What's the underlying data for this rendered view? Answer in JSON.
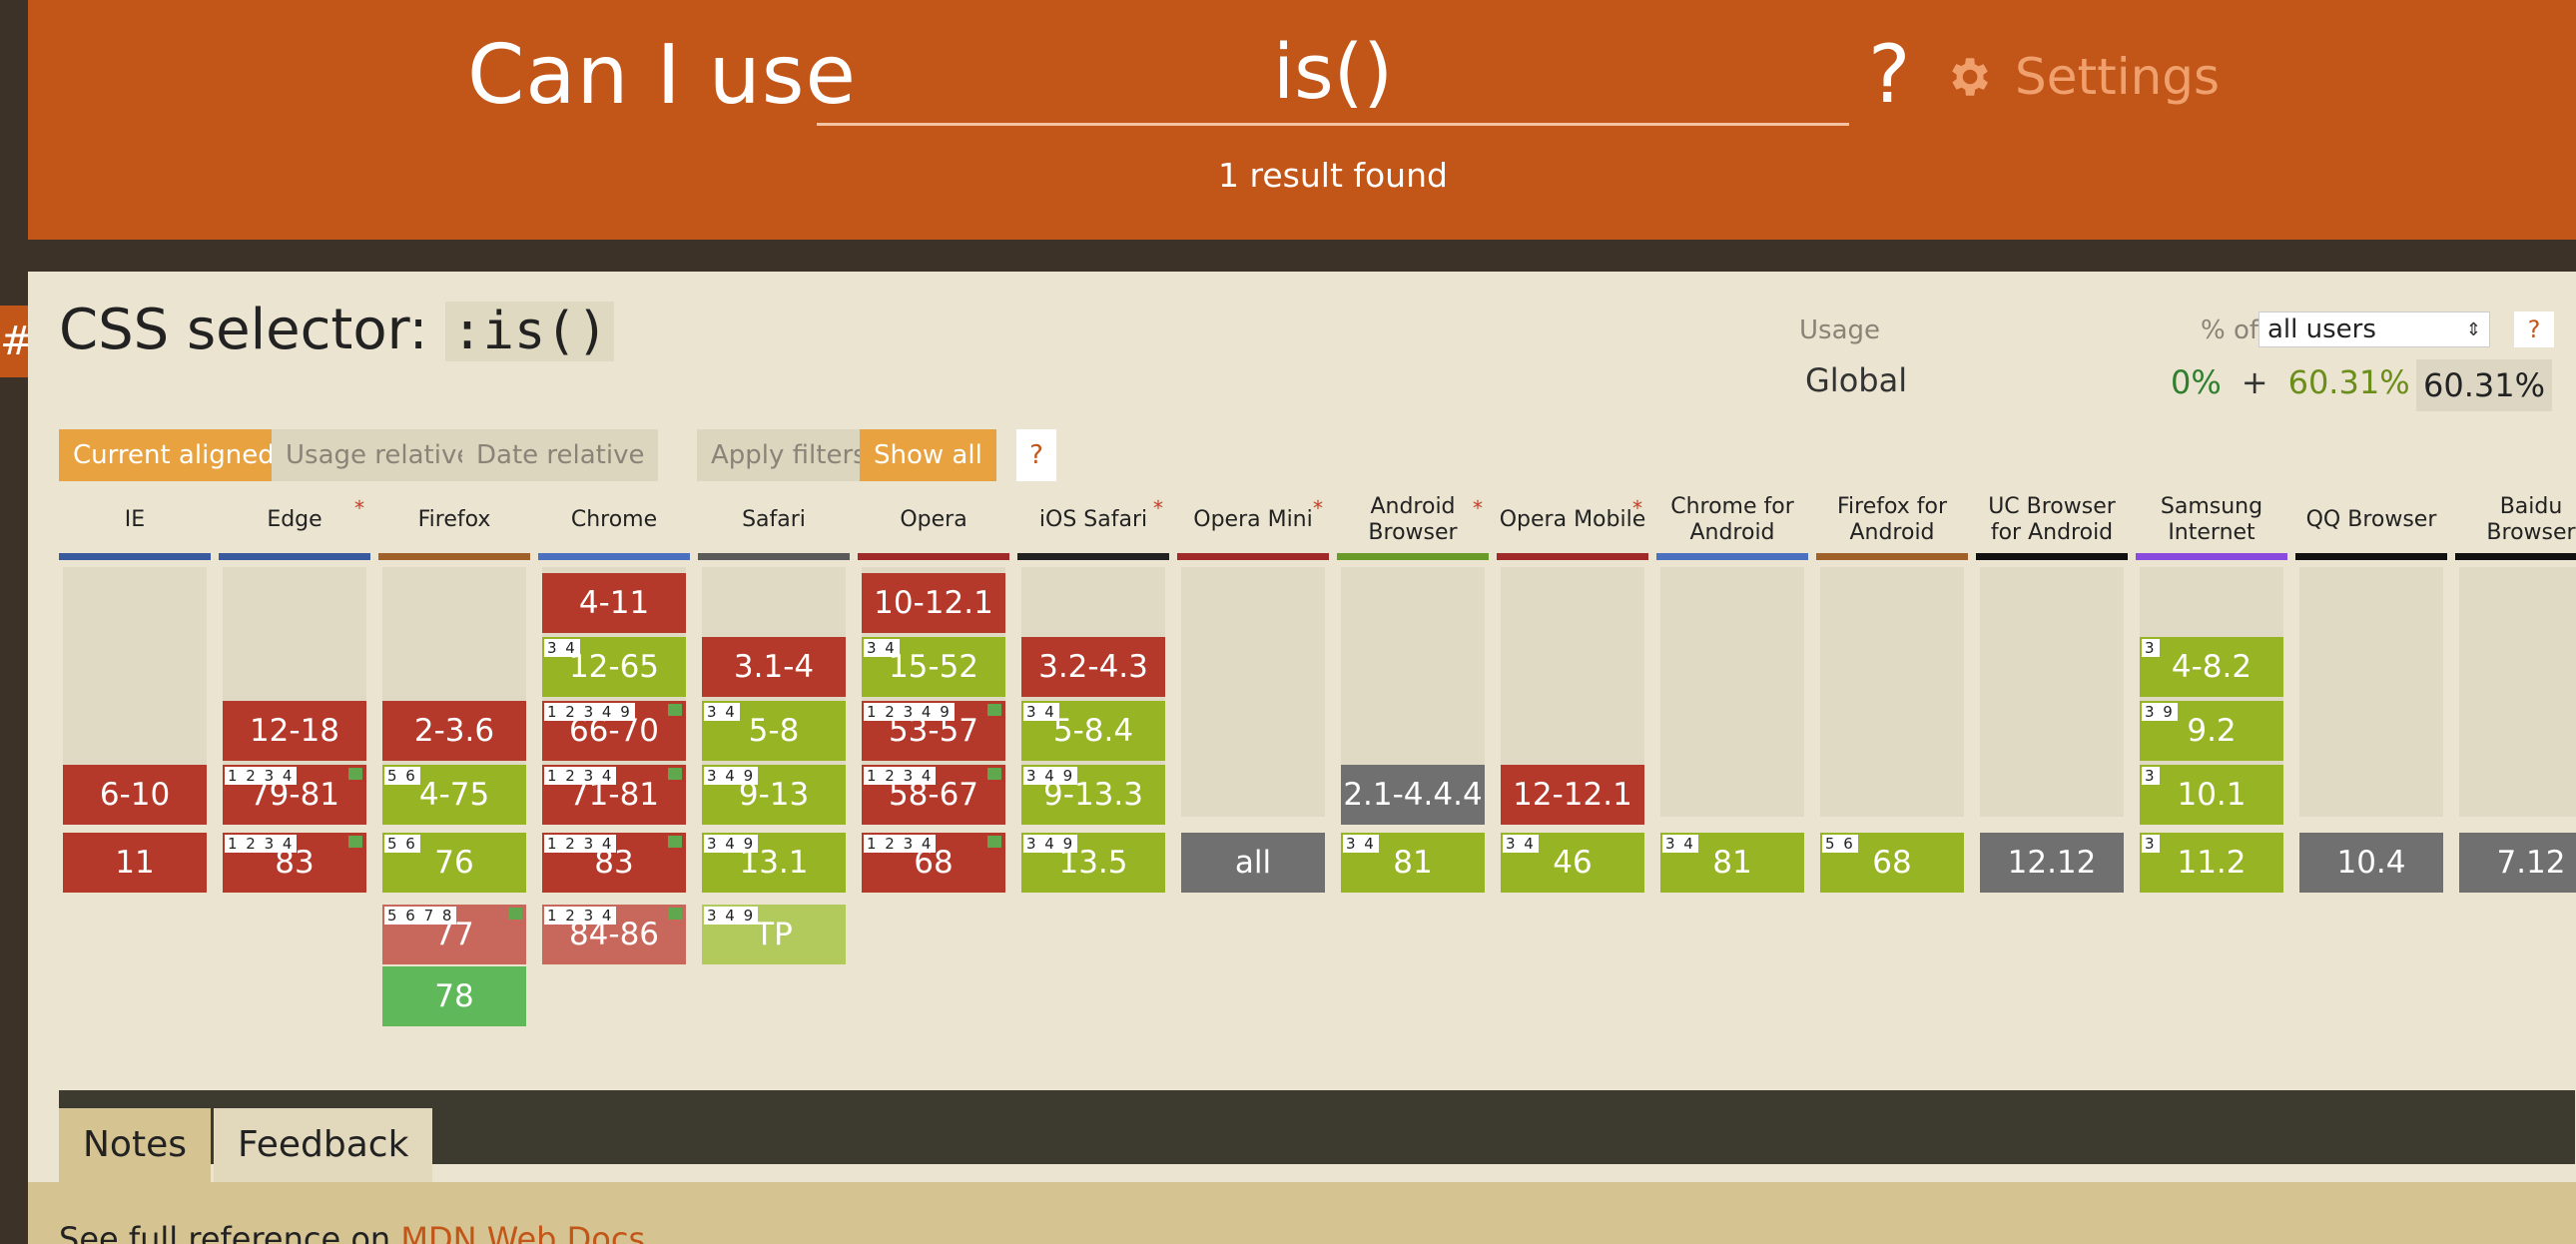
{
  "header": {
    "logo": "Can I use",
    "search_value": "is()",
    "help": "?",
    "settings_label": "Settings",
    "results_text": "1 result found"
  },
  "anchor": "#",
  "feature": {
    "title_prefix": "CSS selector: ",
    "title_code": ":is()"
  },
  "usage": {
    "label": "Usage",
    "region": "Global",
    "pct_of": "% of",
    "users_select": "all users",
    "help": "?",
    "supported": "0%",
    "plus": "+",
    "partial": "60.31%",
    "equals": "=",
    "total": "60.31%"
  },
  "filters": {
    "current_aligned": "Current aligned",
    "usage_relative": "Usage relative",
    "date_relative": "Date relative",
    "apply_filters": "Apply filters",
    "show_all": "Show all",
    "help": "?"
  },
  "colors": {
    "supported_partial": "#97b425",
    "not_supported": "#b5392b",
    "unknown": "#707070",
    "supported": "#5fb85a",
    "header": "#c25518"
  },
  "browsers": [
    {
      "name": "IE",
      "asterisk": "",
      "bar": "#3a5aa0",
      "cells": [
        {
          "v": "6-10",
          "s": "n",
          "row": 3,
          "notes": "",
          "flag": false
        },
        {
          "v": "11",
          "s": "n",
          "row": 4,
          "notes": "",
          "flag": false
        }
      ]
    },
    {
      "name": "Edge",
      "asterisk": "*",
      "bar": "#3a5aa0",
      "cells": [
        {
          "v": "12-18",
          "s": "n",
          "row": 2,
          "notes": "",
          "flag": false
        },
        {
          "v": "79-81",
          "s": "n",
          "row": 3,
          "notes": "1 2 3 4",
          "flag": true
        },
        {
          "v": "83",
          "s": "n",
          "row": 4,
          "notes": "1 2 3 4",
          "flag": true
        }
      ]
    },
    {
      "name": "Firefox",
      "asterisk": "",
      "bar": "#a0602a",
      "cells": [
        {
          "v": "2-3.6",
          "s": "n",
          "row": 2,
          "notes": "",
          "flag": false
        },
        {
          "v": "4-75",
          "s": "y",
          "row": 3,
          "notes": "5 6",
          "flag": false
        },
        {
          "v": "76",
          "s": "y",
          "row": 4,
          "notes": "5 6",
          "flag": false
        },
        {
          "v": "77",
          "s": "nf",
          "row": 5,
          "notes": "5 6 7 8",
          "flag": true
        },
        {
          "v": "78",
          "s": "g",
          "row": 6,
          "notes": "",
          "flag": false
        }
      ]
    },
    {
      "name": "Chrome",
      "asterisk": "",
      "bar": "#4a70c0",
      "cells": [
        {
          "v": "4-11",
          "s": "n",
          "row": 0,
          "notes": "",
          "flag": false
        },
        {
          "v": "12-65",
          "s": "y",
          "row": 1,
          "notes": "3 4",
          "flag": false
        },
        {
          "v": "66-70",
          "s": "n",
          "row": 2,
          "notes": "1 2 3 4 9",
          "flag": true
        },
        {
          "v": "71-81",
          "s": "n",
          "row": 3,
          "notes": "1 2 3 4",
          "flag": true
        },
        {
          "v": "83",
          "s": "n",
          "row": 4,
          "notes": "1 2 3 4",
          "flag": true
        },
        {
          "v": "84-86",
          "s": "nf",
          "row": 5,
          "notes": "1 2 3 4",
          "flag": true
        }
      ]
    },
    {
      "name": "Safari",
      "asterisk": "",
      "bar": "#5a5a5a",
      "cells": [
        {
          "v": "3.1-4",
          "s": "n",
          "row": 1,
          "notes": "",
          "flag": false
        },
        {
          "v": "5-8",
          "s": "y",
          "row": 2,
          "notes": "3 4",
          "flag": false
        },
        {
          "v": "9-13",
          "s": "y",
          "row": 3,
          "notes": "3 4 9",
          "flag": false
        },
        {
          "v": "13.1",
          "s": "y",
          "row": 4,
          "notes": "3 4 9",
          "flag": false
        },
        {
          "v": "TP",
          "s": "yf",
          "row": 5,
          "notes": "3 4 9",
          "flag": false
        }
      ]
    },
    {
      "name": "Opera",
      "asterisk": "",
      "bar": "#a02a2a",
      "cells": [
        {
          "v": "10-12.1",
          "s": "n",
          "row": 0,
          "notes": "",
          "flag": false
        },
        {
          "v": "15-52",
          "s": "y",
          "row": 1,
          "notes": "3 4",
          "flag": false
        },
        {
          "v": "53-57",
          "s": "n",
          "row": 2,
          "notes": "1 2 3 4 9",
          "flag": true
        },
        {
          "v": "58-67",
          "s": "n",
          "row": 3,
          "notes": "1 2 3 4",
          "flag": true
        },
        {
          "v": "68",
          "s": "n",
          "row": 4,
          "notes": "1 2 3 4",
          "flag": true
        }
      ]
    },
    {
      "name": "iOS Safari",
      "asterisk": "*",
      "bar": "#222222",
      "cells": [
        {
          "v": "3.2-4.3",
          "s": "n",
          "row": 1,
          "notes": "",
          "flag": false
        },
        {
          "v": "5-8.4",
          "s": "y",
          "row": 2,
          "notes": "3 4",
          "flag": false
        },
        {
          "v": "9-13.3",
          "s": "y",
          "row": 3,
          "notes": "3 4 9",
          "flag": false
        },
        {
          "v": "13.5",
          "s": "y",
          "row": 4,
          "notes": "3 4 9",
          "flag": false
        }
      ]
    },
    {
      "name": "Opera Mini",
      "asterisk": "*",
      "bar": "#a02a2a",
      "cells": [
        {
          "v": "all",
          "s": "u",
          "row": 4,
          "notes": "",
          "flag": false
        }
      ]
    },
    {
      "name": "Android Browser",
      "asterisk": "*",
      "bar": "#6a9a2a",
      "cells": [
        {
          "v": "2.1-4.4.4",
          "s": "u",
          "row": 3,
          "notes": "",
          "flag": false
        },
        {
          "v": "81",
          "s": "y",
          "row": 4,
          "notes": "3 4",
          "flag": false
        }
      ]
    },
    {
      "name": "Opera Mobile",
      "asterisk": "*",
      "bar": "#a02a2a",
      "cells": [
        {
          "v": "12-12.1",
          "s": "n",
          "row": 3,
          "notes": "",
          "flag": false
        },
        {
          "v": "46",
          "s": "y",
          "row": 4,
          "notes": "3 4",
          "flag": false
        }
      ]
    },
    {
      "name": "Chrome for Android",
      "asterisk": "",
      "bar": "#4a70c0",
      "cells": [
        {
          "v": "81",
          "s": "y",
          "row": 4,
          "notes": "3 4",
          "flag": false
        }
      ]
    },
    {
      "name": "Firefox for Android",
      "asterisk": "",
      "bar": "#a0602a",
      "cells": [
        {
          "v": "68",
          "s": "y",
          "row": 4,
          "notes": "5 6",
          "flag": false
        }
      ]
    },
    {
      "name": "UC Browser for Android",
      "asterisk": "",
      "bar": "#111111",
      "cells": [
        {
          "v": "12.12",
          "s": "u",
          "row": 4,
          "notes": "",
          "flag": false
        }
      ]
    },
    {
      "name": "Samsung Internet",
      "asterisk": "",
      "bar": "#8a4ae0",
      "cells": [
        {
          "v": "4-8.2",
          "s": "y",
          "row": 1,
          "notes": "3",
          "flag": false
        },
        {
          "v": "9.2",
          "s": "y",
          "row": 2,
          "notes": "3 9",
          "flag": false
        },
        {
          "v": "10.1",
          "s": "y",
          "row": 3,
          "notes": "3",
          "flag": false
        },
        {
          "v": "11.2",
          "s": "y",
          "row": 4,
          "notes": "3",
          "flag": false
        }
      ]
    },
    {
      "name": "QQ Browser",
      "asterisk": "",
      "bar": "#111111",
      "cells": [
        {
          "v": "10.4",
          "s": "u",
          "row": 4,
          "notes": "",
          "flag": false
        }
      ]
    },
    {
      "name": "Baidu Browser",
      "asterisk": "",
      "bar": "#111111",
      "cells": [
        {
          "v": "7.12",
          "s": "u",
          "row": 4,
          "notes": "",
          "flag": false
        }
      ]
    }
  ],
  "tabs": {
    "notes": "Notes",
    "feedback": "Feedback"
  },
  "notes_text_prefix": "See full reference on ",
  "notes_link": "MDN Web Docs"
}
